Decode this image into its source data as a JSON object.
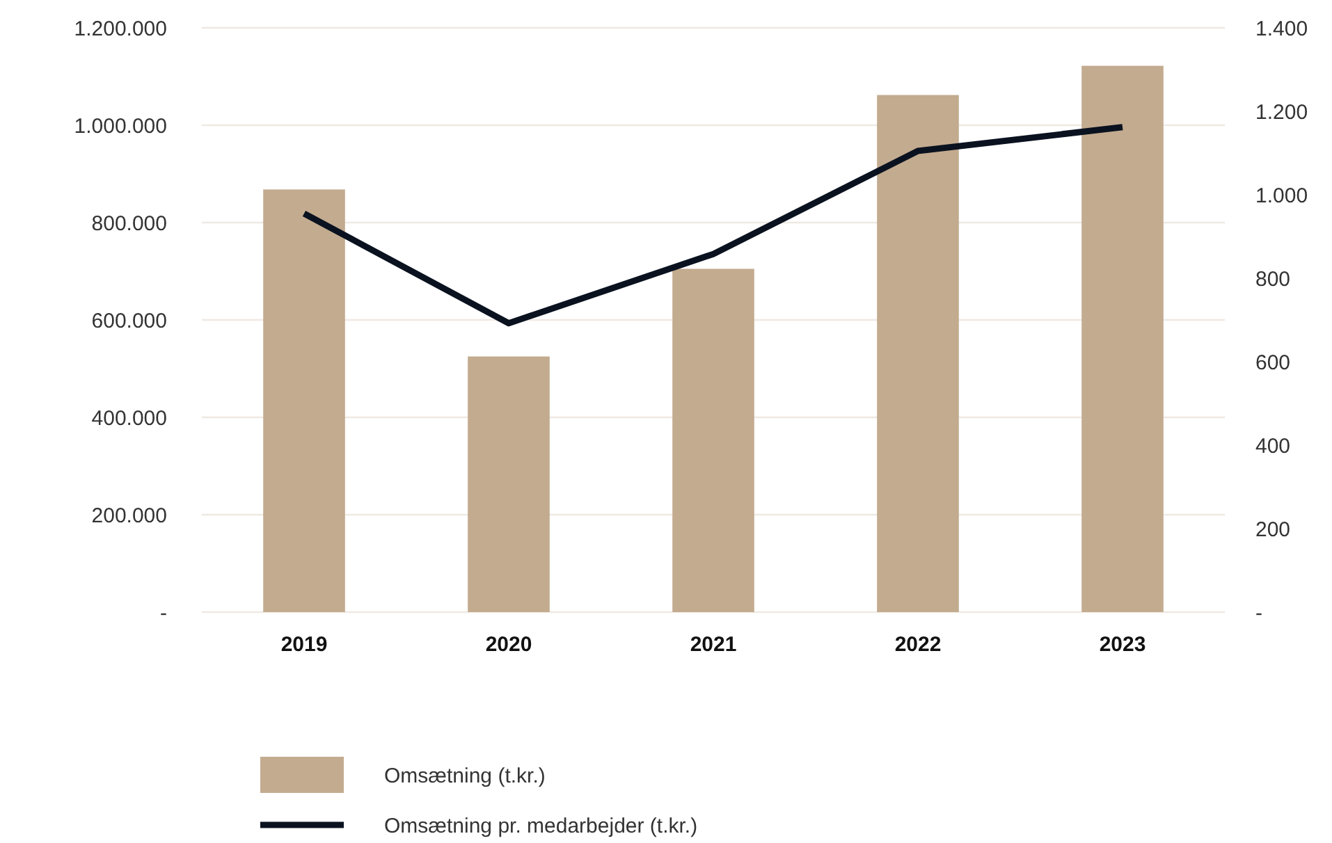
{
  "chart_data": {
    "type": "bar",
    "categories": [
      "2019",
      "2020",
      "2021",
      "2022",
      "2023"
    ],
    "series": [
      {
        "name": "Omsætning (t.kr.)",
        "color": "#c3ab8f",
        "values": [
          868000,
          525000,
          705000,
          1062000,
          1122000
        ]
      },
      {
        "name": "Omsætning pr. medarbejder (t.kr.)",
        "type": "line",
        "axis": "y2",
        "color": "#0a1220",
        "values": [
          955,
          692,
          858,
          1105,
          1162
        ]
      }
    ],
    "ylim": [
      0,
      1200000
    ],
    "yticks": [
      {
        "value": 0,
        "label": "-"
      },
      {
        "value": 200000,
        "label": "200.000"
      },
      {
        "value": 400000,
        "label": "400.000"
      },
      {
        "value": 600000,
        "label": "600.000"
      },
      {
        "value": 800000,
        "label": "800.000"
      },
      {
        "value": 1000000,
        "label": "1.000.000"
      },
      {
        "value": 1200000,
        "label": "1.200.000"
      }
    ],
    "y2lim": [
      0,
      1400
    ],
    "y2ticks": [
      {
        "value": 0,
        "label": "-"
      },
      200,
      400,
      600,
      800,
      {
        "value": 1000,
        "label": "1.000"
      },
      {
        "value": 1200,
        "label": "1.200"
      },
      {
        "value": 1400,
        "label": "1.400"
      }
    ],
    "grid": "y",
    "legend": "bottom",
    "marker": "none",
    "line_style": "solid"
  }
}
